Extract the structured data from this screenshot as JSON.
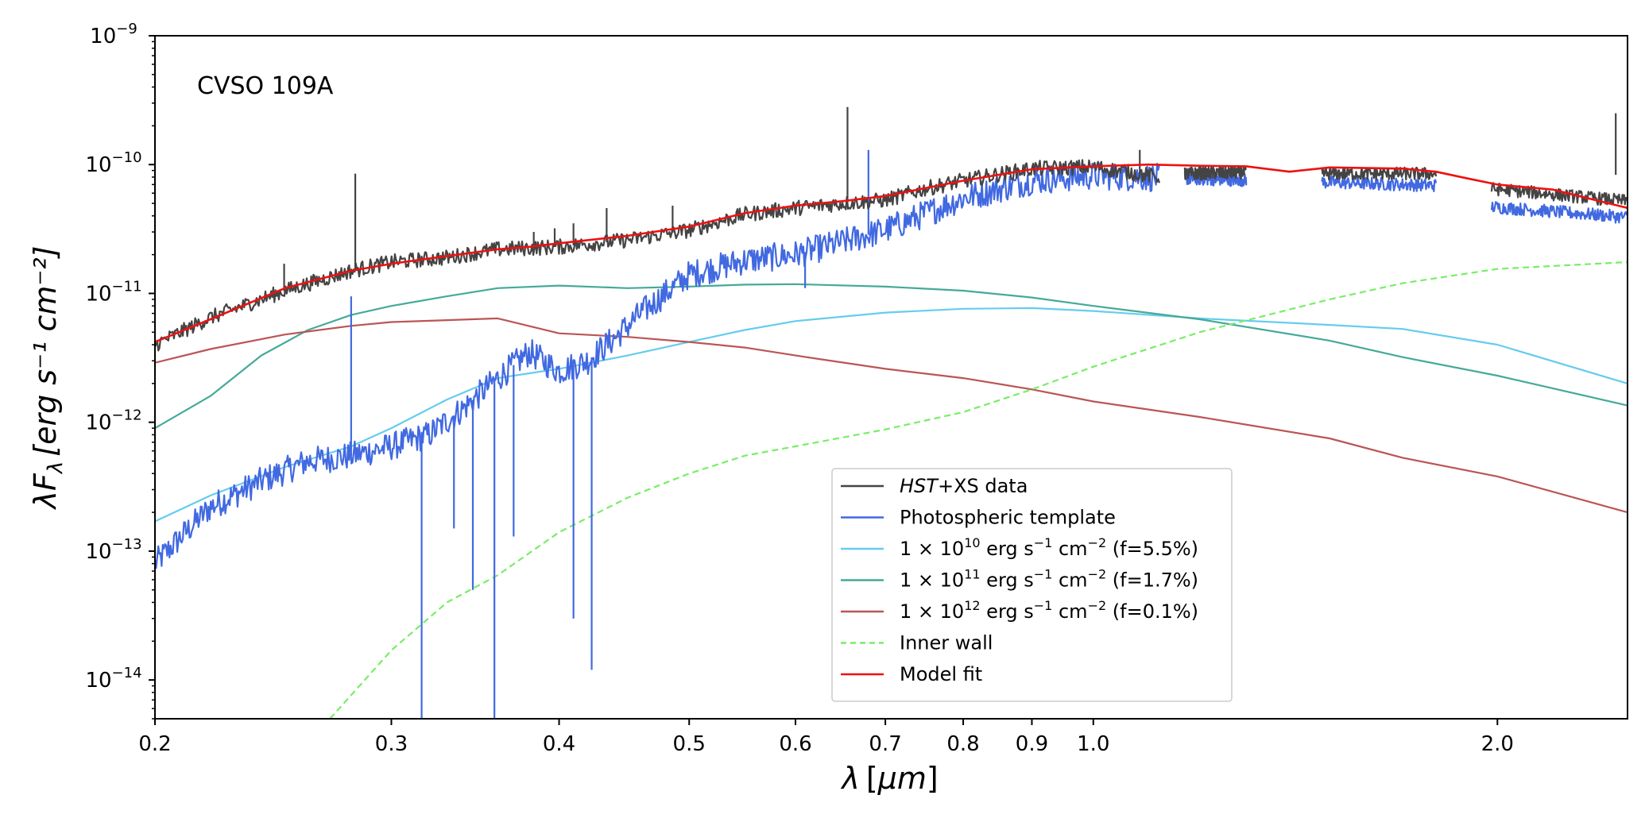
{
  "chart_data": {
    "type": "line",
    "annotation": "CVSO 109A",
    "xlabel": {
      "lambda": "λ",
      "bracket_open": "[",
      "unit": "μm",
      "bracket_close": "]"
    },
    "ylabel": {
      "main": "λF",
      "sub": "λ",
      "unit": "[erg s⁻¹ cm⁻²]"
    },
    "x_scale": "log",
    "y_scale": "log",
    "xlim": [
      0.2,
      2.5
    ],
    "ylim": [
      5e-15,
      1e-09
    ],
    "x_ticks": [
      {
        "value": 0.2,
        "label": "0.2"
      },
      {
        "value": 0.3,
        "label": "0.3"
      },
      {
        "value": 0.4,
        "label": "0.4"
      },
      {
        "value": 0.5,
        "label": "0.5"
      },
      {
        "value": 0.6,
        "label": "0.6"
      },
      {
        "value": 0.7,
        "label": "0.7"
      },
      {
        "value": 0.8,
        "label": "0.8"
      },
      {
        "value": 0.9,
        "label": "0.9"
      },
      {
        "value": 1.0,
        "label": "1.0"
      },
      {
        "value": 2.0,
        "label": "2.0"
      }
    ],
    "y_ticks": [
      {
        "value": 1e-14,
        "base": "10",
        "exp": "−14"
      },
      {
        "value": 1e-13,
        "base": "10",
        "exp": "−13"
      },
      {
        "value": 1e-12,
        "base": "10",
        "exp": "−12"
      },
      {
        "value": 1e-11,
        "base": "10",
        "exp": "−11"
      },
      {
        "value": 1e-10,
        "base": "10",
        "exp": "−10"
      },
      {
        "value": 1e-09,
        "base": "10",
        "exp": "−9"
      }
    ],
    "series": [
      {
        "name": "HST+XS data",
        "legend": {
          "italic": "HST",
          "text": "+XS data"
        },
        "color": "#444444",
        "style": "solid",
        "noisy": true,
        "x": [
          0.2,
          0.22,
          0.25,
          0.28,
          0.3,
          0.33,
          0.36,
          0.4,
          0.45,
          0.5,
          0.55,
          0.6,
          0.65,
          0.7,
          0.75,
          0.8,
          0.9,
          1.0,
          1.12
        ],
        "y": [
          4e-12,
          6.5e-12,
          1.05e-11,
          1.5e-11,
          1.75e-11,
          1.9e-11,
          2.2e-11,
          2.3e-11,
          2.6e-11,
          3.1e-11,
          4.1e-11,
          4.6e-11,
          5e-11,
          5.3e-11,
          6.5e-11,
          7.5e-11,
          9.3e-11,
          9.6e-11,
          8e-11
        ],
        "segments": [
          {
            "x": [
              1.17,
              1.3
            ],
            "y": [
              8.5e-11,
              8.7e-11
            ]
          },
          {
            "x": [
              1.48,
              1.8
            ],
            "y": [
              8.5e-11,
              8.5e-11
            ]
          },
          {
            "x": [
              1.98,
              2.5
            ],
            "y": [
              6.5e-11,
              5.2e-11
            ]
          }
        ],
        "spikes": [
          {
            "x": 0.282,
            "y": 8.5e-11
          },
          {
            "x": 0.656,
            "y": 2.8e-10
          },
          {
            "x": 0.486,
            "y": 4.8e-11
          },
          {
            "x": 0.434,
            "y": 4.6e-11
          },
          {
            "x": 0.41,
            "y": 3.5e-11
          },
          {
            "x": 0.397,
            "y": 3.2e-11
          },
          {
            "x": 0.383,
            "y": 3e-11
          },
          {
            "x": 0.2496,
            "y": 1.7e-11
          },
          {
            "x": 1.083,
            "y": 1.3e-10
          },
          {
            "x": 2.45,
            "y": 2.5e-10
          }
        ]
      },
      {
        "name": "Photospheric template",
        "legend": {
          "text": "Photospheric template"
        },
        "color": "#4169e1",
        "style": "solid",
        "noisy": true,
        "x": [
          0.2,
          0.22,
          0.24,
          0.26,
          0.28,
          0.3,
          0.32,
          0.34,
          0.36,
          0.38,
          0.4,
          0.42,
          0.44,
          0.46,
          0.5,
          0.55,
          0.6,
          0.65,
          0.7,
          0.8,
          0.9,
          1.0,
          1.12
        ],
        "y": [
          8e-14,
          2.2e-13,
          3.5e-13,
          5e-13,
          5.5e-13,
          6.5e-13,
          8e-13,
          1.3e-12,
          2.2e-12,
          3.5e-12,
          2.5e-12,
          3e-12,
          4.5e-12,
          7e-12,
          1.4e-11,
          1.8e-11,
          2e-11,
          2.5e-11,
          3.1e-11,
          5.5e-11,
          7.5e-11,
          8.2e-11,
          7.9e-11
        ],
        "segments": [
          {
            "x": [
              1.17,
              1.3
            ],
            "y": [
              7.8e-11,
              7.6e-11
            ]
          },
          {
            "x": [
              1.48,
              1.8
            ],
            "y": [
              7.3e-11,
              6.9e-11
            ]
          },
          {
            "x": [
              1.98,
              2.5
            ],
            "y": [
              4.7e-11,
              3.9e-11
            ]
          }
        ],
        "dips": [
          {
            "x": 0.316,
            "y": 4e-15
          },
          {
            "x": 0.358,
            "y": 4e-15
          },
          {
            "x": 0.423,
            "y": 1.2e-14
          },
          {
            "x": 0.345,
            "y": 5e-14
          },
          {
            "x": 0.334,
            "y": 1.5e-13
          },
          {
            "x": 0.37,
            "y": 1.3e-13
          },
          {
            "x": 0.41,
            "y": 3e-14
          },
          {
            "x": 0.61,
            "y": 1.1e-11
          }
        ],
        "spikes": [
          {
            "x": 0.28,
            "y": 9.5e-12
          },
          {
            "x": 0.68,
            "y": 1.3e-10
          }
        ]
      },
      {
        "name": "1e10",
        "legend": {
          "pre": "1 × 10",
          "sup": "10",
          "mid": " erg s",
          "sup2": "−1",
          "mid2": " cm",
          "sup3": "−2",
          "post": " (f=5.5%)"
        },
        "color": "#66ccee",
        "style": "solid",
        "noisy": false,
        "x": [
          0.2,
          0.22,
          0.25,
          0.28,
          0.3,
          0.33,
          0.36,
          0.4,
          0.45,
          0.5,
          0.55,
          0.6,
          0.7,
          0.8,
          0.9,
          1.0,
          1.2,
          1.5,
          1.7,
          2.0,
          2.5
        ],
        "y": [
          1.7e-13,
          2.7e-13,
          4.5e-13,
          6.5e-13,
          9e-13,
          1.5e-12,
          2.2e-12,
          2.6e-12,
          3.3e-12,
          4.2e-12,
          5.2e-12,
          6.1e-12,
          7.1e-12,
          7.6e-12,
          7.7e-12,
          7.3e-12,
          6.4e-12,
          5.7e-12,
          5.3e-12,
          4e-12,
          2e-12
        ]
      },
      {
        "name": "1e11",
        "legend": {
          "pre": "1 × 10",
          "sup": "11",
          "mid": " erg s",
          "sup2": "−1",
          "mid2": " cm",
          "sup3": "−2",
          "post": " (f=1.7%)"
        },
        "color": "#44aa99",
        "style": "solid",
        "noisy": false,
        "x": [
          0.2,
          0.22,
          0.24,
          0.26,
          0.28,
          0.3,
          0.33,
          0.36,
          0.4,
          0.45,
          0.5,
          0.55,
          0.6,
          0.7,
          0.8,
          0.9,
          1.0,
          1.2,
          1.5,
          1.7,
          2.0,
          2.5
        ],
        "y": [
          9e-13,
          1.6e-12,
          3.3e-12,
          5.2e-12,
          6.8e-12,
          8e-12,
          9.5e-12,
          1.1e-11,
          1.15e-11,
          1.1e-11,
          1.13e-11,
          1.17e-11,
          1.18e-11,
          1.13e-11,
          1.05e-11,
          9.3e-12,
          8e-12,
          6.3e-12,
          4.3e-12,
          3.2e-12,
          2.3e-12,
          1.35e-12
        ]
      },
      {
        "name": "1e12",
        "legend": {
          "pre": "1 × 10",
          "sup": "12",
          "mid": " erg s",
          "sup2": "−1",
          "mid2": " cm",
          "sup3": "−2",
          "post": " (f=0.1%)"
        },
        "color": "#bb5555",
        "style": "solid",
        "noisy": false,
        "x": [
          0.2,
          0.22,
          0.25,
          0.28,
          0.3,
          0.33,
          0.36,
          0.4,
          0.45,
          0.5,
          0.55,
          0.6,
          0.7,
          0.8,
          0.9,
          1.0,
          1.2,
          1.5,
          1.7,
          2.0,
          2.5
        ],
        "y": [
          2.9e-12,
          3.7e-12,
          4.8e-12,
          5.6e-12,
          6e-12,
          6.2e-12,
          6.4e-12,
          4.9e-12,
          4.6e-12,
          4.2e-12,
          3.8e-12,
          3.3e-12,
          2.6e-12,
          2.2e-12,
          1.8e-12,
          1.45e-12,
          1.1e-12,
          7.5e-13,
          5.3e-13,
          3.8e-13,
          2e-13
        ]
      },
      {
        "name": "Inner wall",
        "legend": {
          "text": "Inner wall"
        },
        "color": "#77ee66",
        "style": "dashed",
        "noisy": false,
        "x": [
          0.27,
          0.3,
          0.33,
          0.36,
          0.4,
          0.45,
          0.5,
          0.55,
          0.6,
          0.7,
          0.8,
          0.9,
          1.0,
          1.2,
          1.5,
          1.7,
          2.0,
          2.5
        ],
        "y": [
          5e-15,
          1.7e-14,
          4e-14,
          6.5e-14,
          1.4e-13,
          2.6e-13,
          4e-13,
          5.5e-13,
          6.5e-13,
          8.8e-13,
          1.2e-12,
          1.8e-12,
          2.7e-12,
          5e-12,
          9e-12,
          1.2e-11,
          1.55e-11,
          1.75e-11
        ]
      },
      {
        "name": "Model fit",
        "legend": {
          "text": "Model fit"
        },
        "color": "#ee1111",
        "style": "solid",
        "noisy": false,
        "x": [
          0.2,
          0.22,
          0.25,
          0.28,
          0.3,
          0.33,
          0.36,
          0.38,
          0.4,
          0.45,
          0.5,
          0.55,
          0.6,
          0.65,
          0.7,
          0.8,
          0.9,
          1.0,
          1.1,
          1.2,
          1.3,
          1.4,
          1.5,
          1.7,
          1.8,
          1.9,
          2.0,
          2.2,
          2.5
        ],
        "y": [
          4.2e-12,
          6.3e-12,
          1.1e-11,
          1.5e-11,
          1.7e-11,
          1.95e-11,
          2.2e-11,
          2.3e-11,
          2.45e-11,
          2.8e-11,
          3.3e-11,
          4.2e-11,
          4.8e-11,
          5.2e-11,
          5.7e-11,
          7.5e-11,
          9.2e-11,
          9.7e-11,
          1e-10,
          9.8e-11,
          9.7e-11,
          8.8e-11,
          9.5e-11,
          9.3e-11,
          8.8e-11,
          7.8e-11,
          7e-11,
          6.4e-11,
          4.6e-11
        ]
      }
    ]
  }
}
